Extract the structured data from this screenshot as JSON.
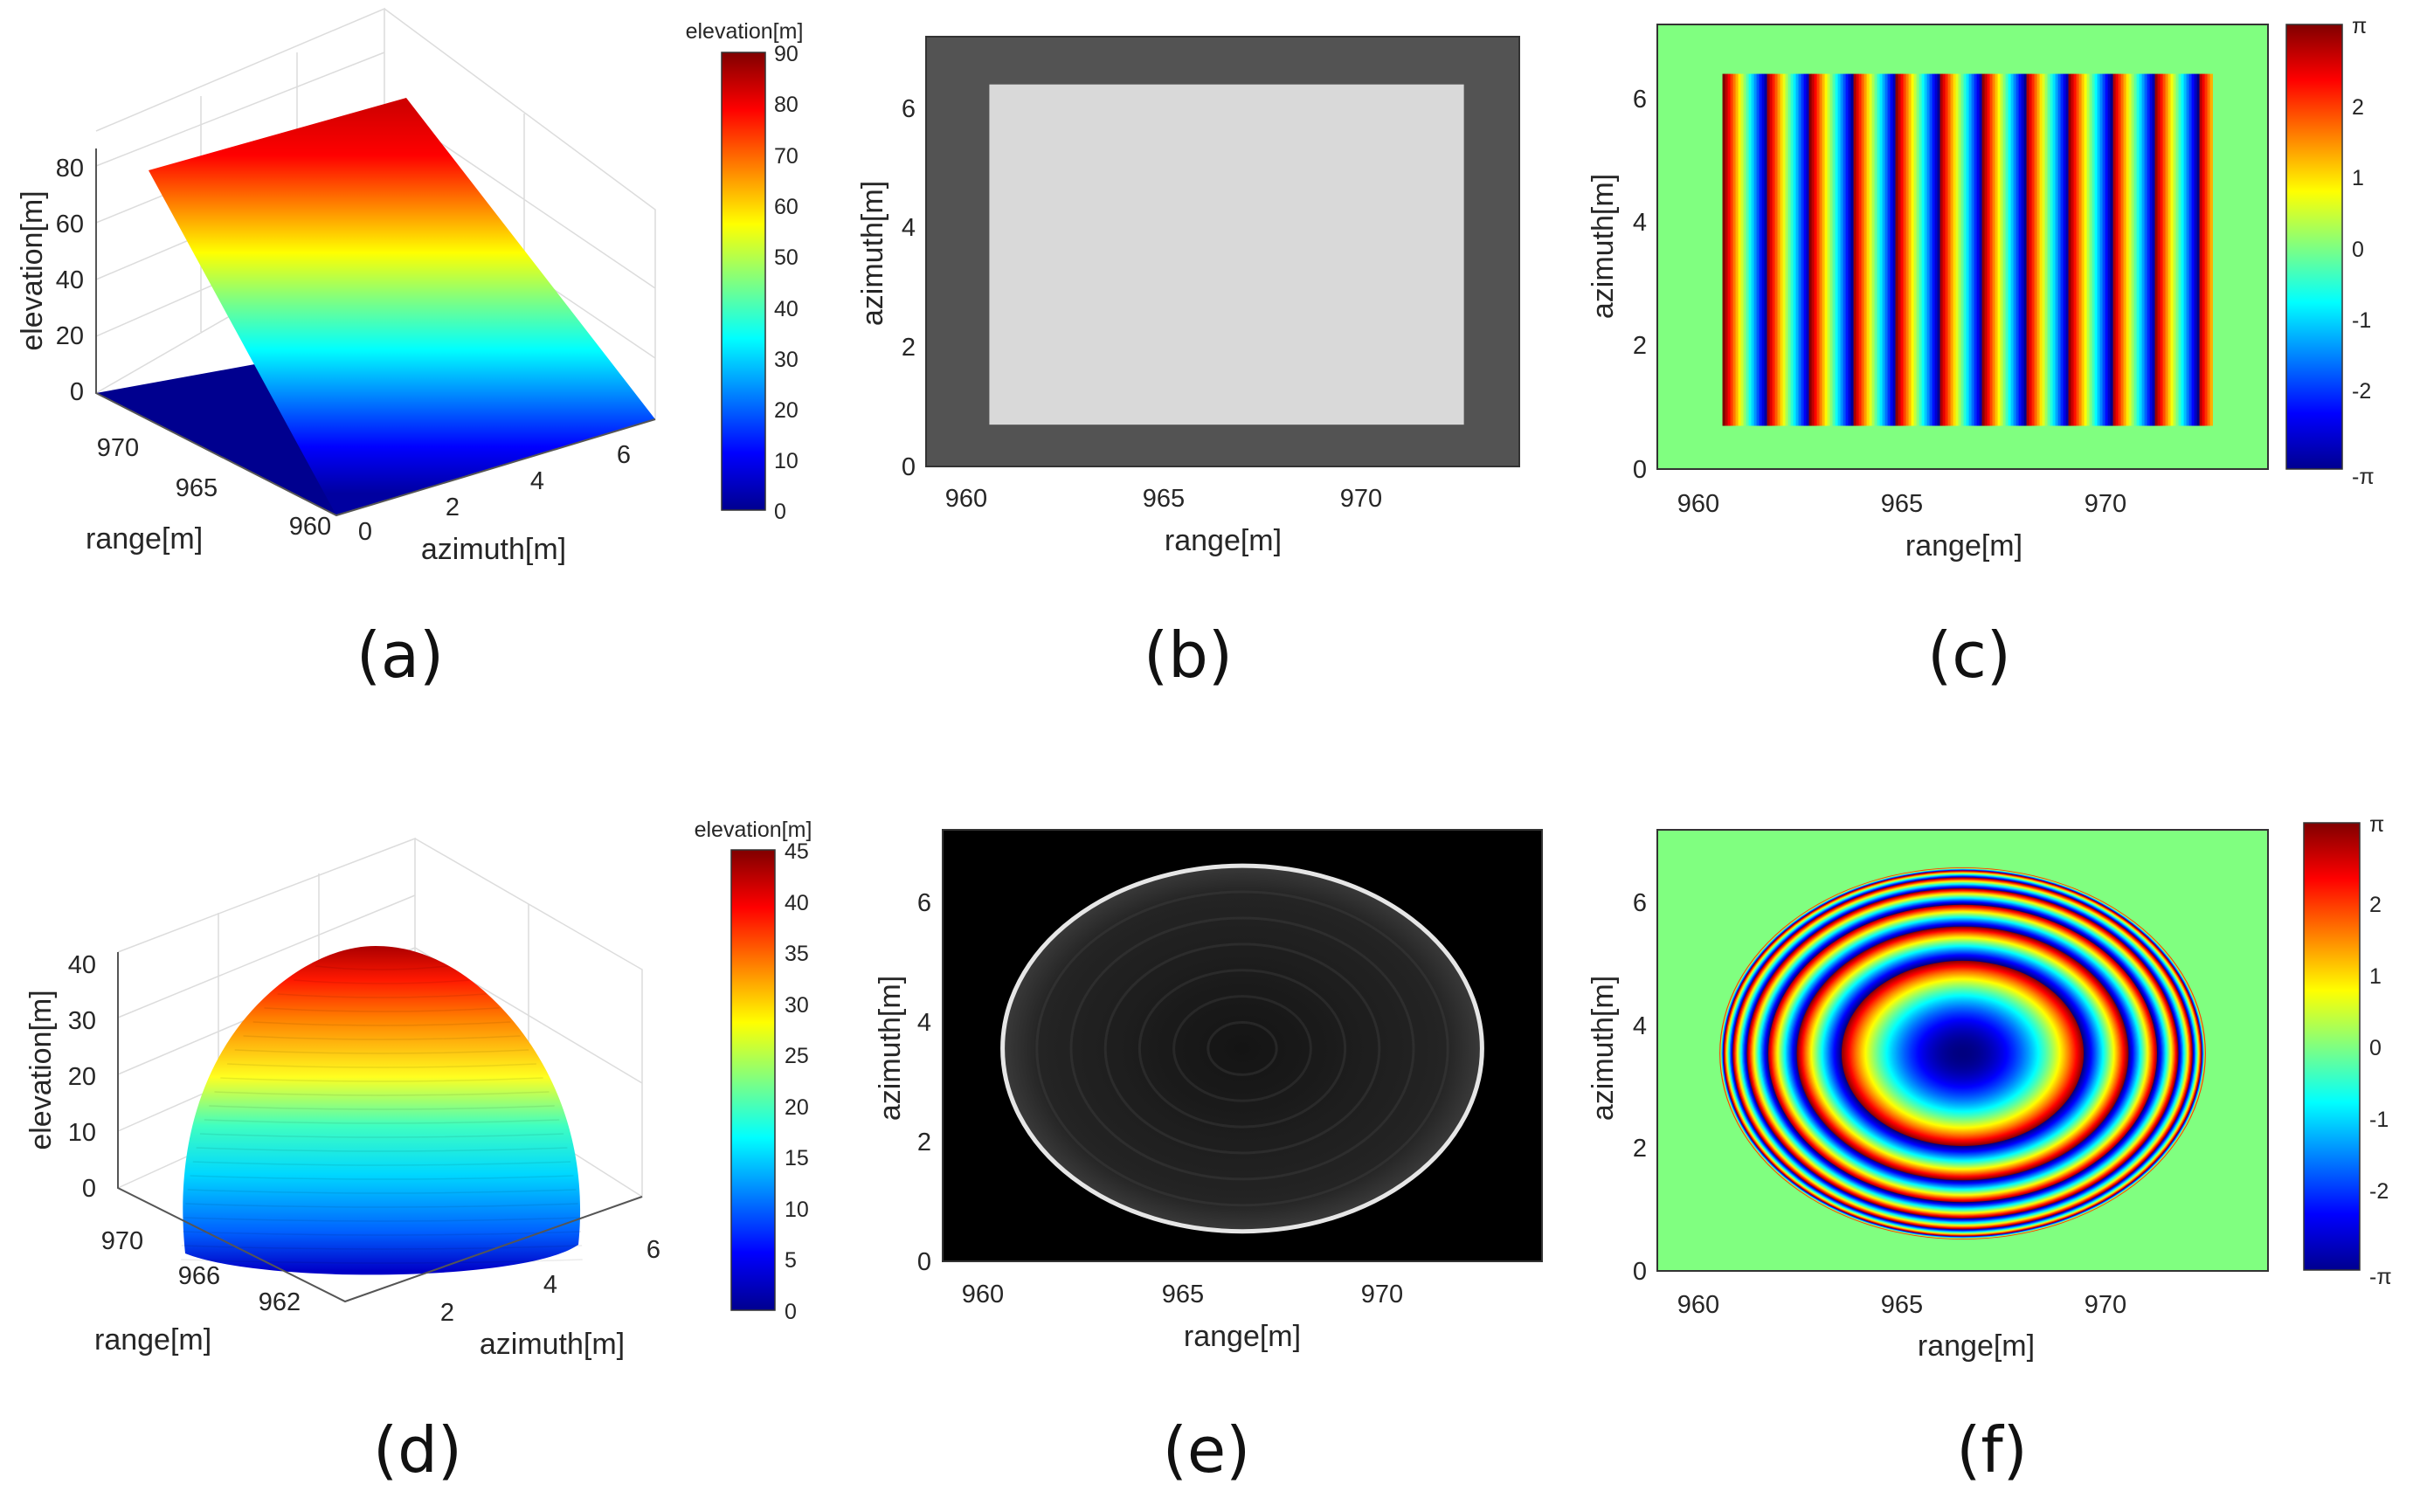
{
  "chart_data": [
    {
      "id": "a",
      "type": "surface3d",
      "caption": "(a)",
      "title": "",
      "xlabel": "range[m]",
      "ylabel": "azimuth[m]",
      "zlabel": "elevation[m]",
      "x_ticks": [
        "960",
        "965",
        "970"
      ],
      "y_ticks": [
        "0",
        "2",
        "4",
        "6"
      ],
      "z_ticks": [
        "0",
        "20",
        "40",
        "60",
        "80"
      ],
      "colorbar": {
        "label": "elevation[m]",
        "range": [
          0,
          90
        ],
        "ticks": [
          "0",
          "10",
          "20",
          "30",
          "40",
          "50",
          "60",
          "70",
          "80",
          "90"
        ]
      },
      "surface": "planar ramp, elevation 0 to about 80 m along range"
    },
    {
      "id": "b",
      "type": "image",
      "caption": "(b)",
      "xlabel": "range[m]",
      "ylabel": "azimuth[m]",
      "x_ticks": [
        "960",
        "965",
        "970"
      ],
      "y_ticks": [
        "0",
        "2",
        "4",
        "6"
      ],
      "xlim": [
        959,
        974
      ],
      "ylim": [
        0,
        7.2
      ],
      "shape": {
        "kind": "rectangle",
        "x_range": [
          960.6,
          972.6
        ],
        "y_range": [
          0.7,
          6.4
        ]
      },
      "colors": {
        "background": "#535353",
        "shape": "#d9d9d9"
      }
    },
    {
      "id": "c",
      "type": "heatmap",
      "caption": "(c)",
      "xlabel": "range[m]",
      "ylabel": "azimuth[m]",
      "x_ticks": [
        "960",
        "965",
        "970"
      ],
      "y_ticks": [
        "0",
        "2",
        "4",
        "6"
      ],
      "xlim": [
        959,
        974
      ],
      "ylim": [
        0,
        7.2
      ],
      "region": {
        "kind": "rectangle",
        "x_range": [
          960.6,
          972.6
        ],
        "y_range": [
          0.7,
          6.4
        ]
      },
      "fringe_period_m": 1.06,
      "colorbar": {
        "range": [
          -3.1416,
          3.1416
        ],
        "ticks": [
          "-π",
          "-2",
          "-1",
          "0",
          "1",
          "2",
          "π"
        ]
      }
    },
    {
      "id": "d",
      "type": "surface3d",
      "caption": "(d)",
      "xlabel": "range[m]",
      "ylabel": "azimuth[m]",
      "zlabel": "elevation[m]",
      "x_ticks": [
        "962",
        "966",
        "970"
      ],
      "y_ticks": [
        "2",
        "4",
        "6"
      ],
      "z_ticks": [
        "0",
        "10",
        "20",
        "30",
        "40"
      ],
      "colorbar": {
        "label": "elevation[m]",
        "range": [
          0,
          45
        ],
        "ticks": [
          "0",
          "5",
          "10",
          "15",
          "20",
          "25",
          "30",
          "35",
          "40",
          "45"
        ]
      },
      "surface": "hemispherical dome, peak about 42 m"
    },
    {
      "id": "e",
      "type": "image",
      "caption": "(e)",
      "xlabel": "range[m]",
      "ylabel": "azimuth[m]",
      "x_ticks": [
        "960",
        "965",
        "970"
      ],
      "y_ticks": [
        "0",
        "2",
        "4",
        "6"
      ],
      "xlim": [
        959,
        974
      ],
      "ylim": [
        0,
        7.2
      ],
      "shape": {
        "kind": "ellipse",
        "center": [
          966.5,
          3.55
        ],
        "radius": [
          6.0,
          3.05
        ]
      },
      "colors": {
        "background": "#000000",
        "fill": "#1e1e1e",
        "rim": "#e6e6e6"
      }
    },
    {
      "id": "f",
      "type": "heatmap",
      "caption": "(f)",
      "xlabel": "range[m]",
      "ylabel": "azimuth[m]",
      "x_ticks": [
        "960",
        "965",
        "970"
      ],
      "y_ticks": [
        "0",
        "2",
        "4",
        "6"
      ],
      "xlim": [
        959,
        974
      ],
      "ylim": [
        0,
        7.2
      ],
      "region": {
        "kind": "ellipse",
        "center": [
          966.5,
          3.55
        ],
        "radius": [
          6.0,
          3.05
        ]
      },
      "colorbar": {
        "range": [
          -3.1416,
          3.1416
        ],
        "ticks": [
          "-π",
          "-2",
          "-1",
          "0",
          "1",
          "2",
          "π"
        ]
      }
    }
  ]
}
